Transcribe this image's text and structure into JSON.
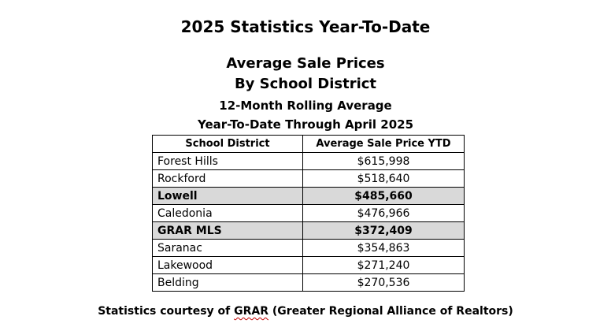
{
  "document": {
    "title": "2025 Statistics Year-To-Date",
    "subtitle_line1": "Average Sale Prices",
    "subtitle_line2": "By School District",
    "subtitle_line3": "12-Month Rolling Average",
    "subtitle_line4": "Year-To-Date Through April 2025"
  },
  "table": {
    "headers": [
      "School District",
      "Average Sale Price YTD"
    ],
    "rows": [
      {
        "district": "Forest Hills",
        "price": "$615,998",
        "highlight": false
      },
      {
        "district": "Rockford",
        "price": "$518,640",
        "highlight": false
      },
      {
        "district": "Lowell",
        "price": "$485,660",
        "highlight": true
      },
      {
        "district": "Caledonia",
        "price": "$476,966",
        "highlight": false
      },
      {
        "district": "GRAR MLS",
        "price": "$372,409",
        "highlight": true
      },
      {
        "district": "Saranac",
        "price": "$354,863",
        "highlight": false
      },
      {
        "district": "Lakewood",
        "price": "$271,240",
        "highlight": false
      },
      {
        "district": "Belding",
        "price": "$270,536",
        "highlight": false
      }
    ],
    "highlight_color": "#d9d9d9"
  },
  "footer": {
    "prefix": "Statistics courtesy of ",
    "link_word": "GRAR",
    "suffix": " (Greater Regional Alliance of Realtors)",
    "spellcheck_color": "#c00000"
  }
}
